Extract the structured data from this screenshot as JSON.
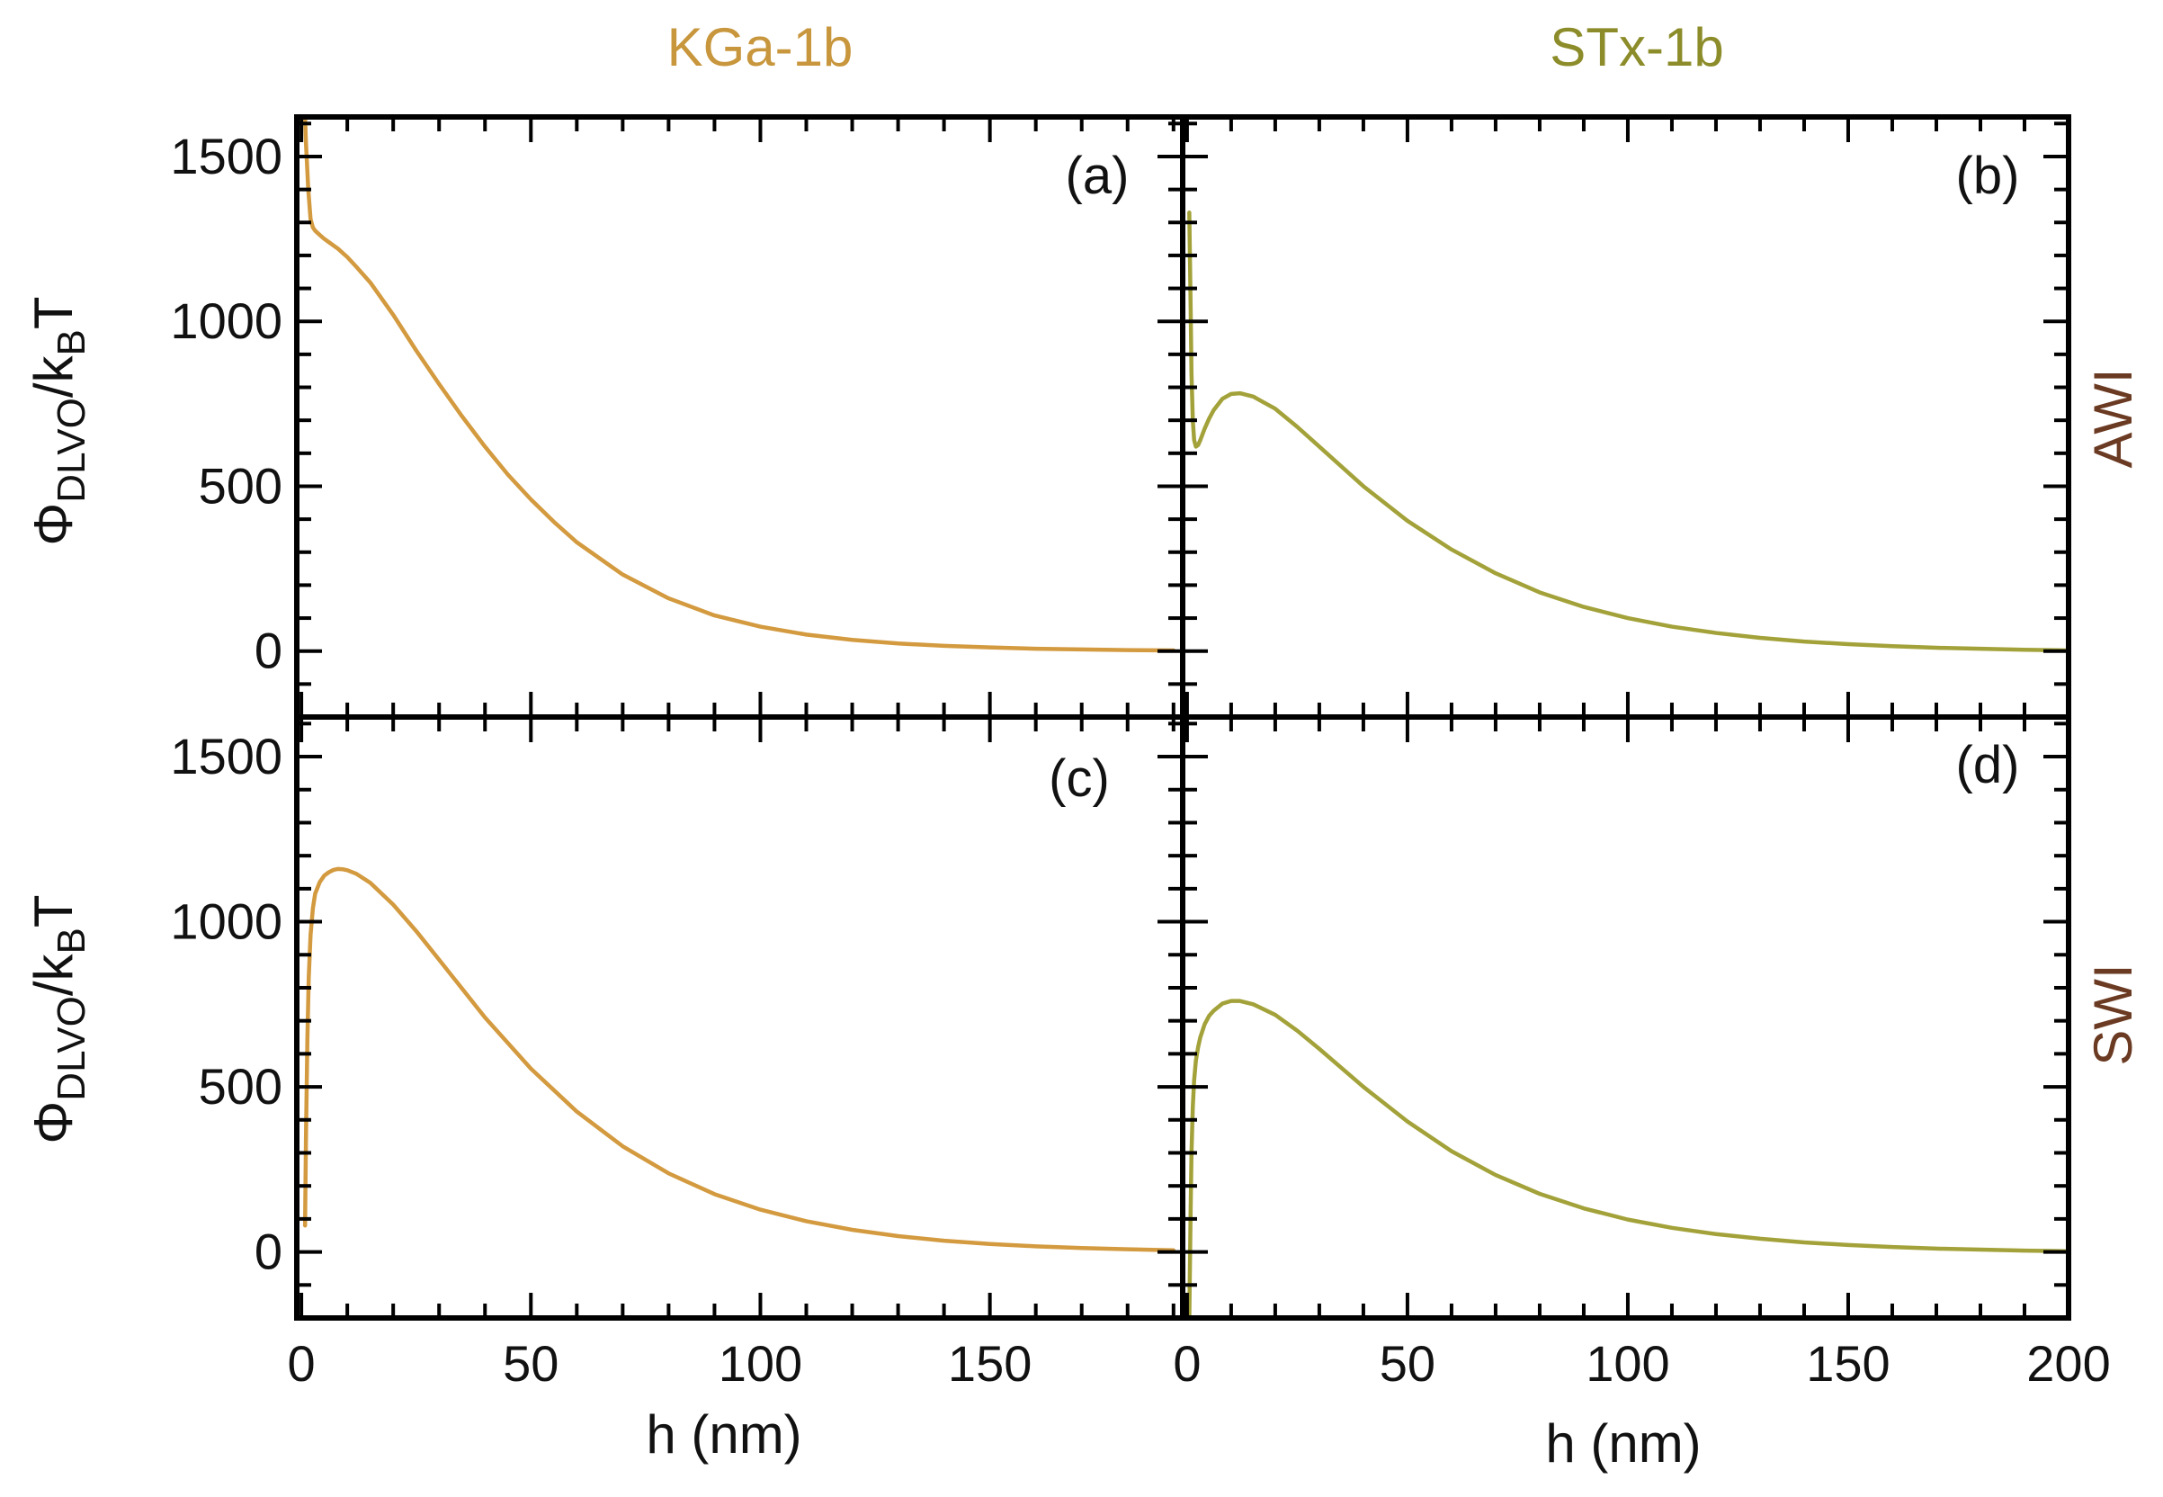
{
  "colors": {
    "kga": "#D39A3F",
    "stx": "#A3A23A",
    "kga_title": "#C8963C",
    "stx_title": "#8C8C2A",
    "row_title": "#6B3A22"
  },
  "column_titles": [
    "KGa-1b",
    "STx-1b"
  ],
  "row_titles": [
    "AWI",
    "SWI"
  ],
  "ylabel": {
    "symbol": "Φ",
    "sub1": "DLVO",
    "mid": "/k",
    "sub2": "B",
    "tail": "T"
  },
  "xlabel": "h (nm)",
  "chart_data": [
    {
      "type": "line",
      "panel_label": "(a)",
      "column_title": "KGa-1b",
      "row_title": "AWI",
      "xlim": [
        -1,
        192
      ],
      "ylim": [
        -200,
        1620
      ],
      "yticks": [
        0,
        500,
        1000,
        1500
      ],
      "xticks": [
        0,
        50,
        100,
        150
      ],
      "grid": false,
      "series": [
        {
          "color": "kga",
          "x": [
            0.8,
            1,
            1.5,
            2,
            2.5,
            3,
            4,
            5,
            6,
            8,
            10,
            12,
            15,
            20,
            25,
            30,
            35,
            40,
            45,
            50,
            55,
            60,
            70,
            80,
            90,
            100,
            110,
            120,
            130,
            140,
            150,
            160,
            170,
            180,
            190
          ],
          "y": [
            1620,
            1540,
            1400,
            1310,
            1285,
            1275,
            1262,
            1250,
            1240,
            1220,
            1195,
            1165,
            1118,
            1020,
            912,
            810,
            712,
            620,
            535,
            460,
            392,
            330,
            232,
            160,
            108,
            74,
            50,
            34,
            23,
            16,
            11,
            7,
            5,
            3,
            2
          ]
        }
      ]
    },
    {
      "type": "line",
      "panel_label": "(b)",
      "column_title": "STx-1b",
      "row_title": "AWI",
      "xlim": [
        -1,
        200
      ],
      "ylim": [
        -200,
        1620
      ],
      "yticks": [
        0,
        500,
        1000,
        1500
      ],
      "xticks": [
        0,
        50,
        100,
        150,
        200
      ],
      "grid": false,
      "series": [
        {
          "color": "stx",
          "x": [
            0.5,
            0.8,
            1,
            1.3,
            1.6,
            2,
            2.5,
            3,
            4,
            5,
            6,
            8,
            10,
            12,
            15,
            20,
            25,
            30,
            40,
            50,
            60,
            70,
            80,
            90,
            100,
            110,
            120,
            130,
            140,
            150,
            160,
            170,
            180,
            190,
            200
          ],
          "y": [
            1330,
            1050,
            840,
            700,
            640,
            620,
            625,
            640,
            675,
            705,
            730,
            765,
            780,
            782,
            772,
            735,
            680,
            620,
            500,
            395,
            308,
            236,
            178,
            134,
            100,
            74,
            55,
            40,
            29,
            21,
            15,
            10,
            7,
            4,
            2
          ]
        }
      ]
    },
    {
      "type": "line",
      "panel_label": "(c)",
      "column_title": "KGa-1b",
      "row_title": "SWI",
      "xlim": [
        -1,
        192
      ],
      "ylim": [
        -200,
        1620
      ],
      "yticks": [
        0,
        500,
        1000,
        1500
      ],
      "xticks": [
        0,
        50,
        100,
        150
      ],
      "grid": false,
      "series": [
        {
          "color": "kga",
          "x": [
            0.8,
            1,
            1.3,
            1.6,
            2,
            2.5,
            3,
            4,
            5,
            6,
            7,
            8,
            9,
            10,
            12,
            15,
            20,
            25,
            30,
            40,
            50,
            60,
            70,
            80,
            90,
            100,
            110,
            120,
            130,
            140,
            150,
            160,
            170,
            180,
            190
          ],
          "y": [
            80,
            350,
            640,
            830,
            960,
            1040,
            1085,
            1120,
            1140,
            1150,
            1157,
            1160,
            1159,
            1156,
            1145,
            1118,
            1052,
            972,
            885,
            710,
            555,
            425,
            320,
            238,
            175,
            128,
            93,
            67,
            48,
            34,
            24,
            17,
            12,
            8,
            5
          ]
        }
      ]
    },
    {
      "type": "line",
      "panel_label": "(d)",
      "column_title": "STx-1b",
      "row_title": "SWI",
      "xlim": [
        -1,
        200
      ],
      "ylim": [
        -200,
        1620
      ],
      "yticks": [
        0,
        500,
        1000,
        1500
      ],
      "xticks": [
        0,
        50,
        100,
        150,
        200
      ],
      "grid": false,
      "series": [
        {
          "color": "stx",
          "x": [
            0.5,
            0.8,
            1,
            1.3,
            1.6,
            2,
            2.5,
            3,
            4,
            5,
            6,
            8,
            10,
            12,
            15,
            20,
            25,
            30,
            40,
            50,
            60,
            70,
            80,
            90,
            100,
            110,
            120,
            130,
            140,
            150,
            160,
            170,
            180,
            190,
            200
          ],
          "y": [
            -200,
            120,
            300,
            440,
            520,
            580,
            620,
            650,
            690,
            715,
            730,
            752,
            760,
            760,
            750,
            718,
            670,
            615,
            500,
            395,
            305,
            233,
            176,
            132,
            98,
            73,
            54,
            40,
            29,
            21,
            15,
            10,
            7,
            4,
            2
          ]
        }
      ]
    }
  ]
}
